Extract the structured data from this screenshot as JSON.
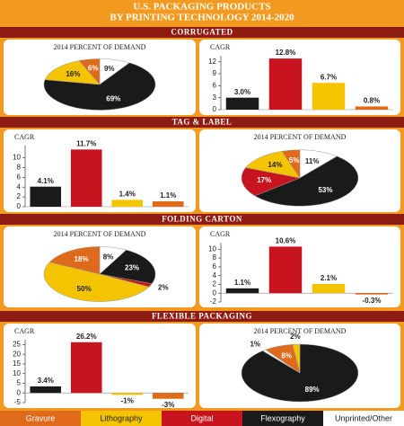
{
  "title_lines": [
    "U.S. PACKAGING PRODUCTS",
    "BY PRINTING TECHNOLOGY 2014-2020"
  ],
  "sections": [
    "CORRUGATED",
    "TAG & LABEL",
    "FOLDING CARTON",
    "FLEXIBLE PACKAGING"
  ],
  "legend": [
    {
      "name": "Gravure",
      "color": "#e06a1b"
    },
    {
      "name": "Lithography",
      "color": "#f5c400"
    },
    {
      "name": "Digital",
      "color": "#c8141e"
    },
    {
      "name": "Flexography",
      "color": "#1a1a1a"
    },
    {
      "name": "Unprinted/Other",
      "color": "#ffffff"
    }
  ],
  "chart_data": [
    {
      "type": "pie",
      "title": "2014 PERCENT OF DEMAND",
      "categories": [
        "Unprinted/Other",
        "Flexography",
        "Lithography",
        "Gravure"
      ],
      "values": [
        9,
        69,
        16,
        6
      ],
      "value_labels": [
        "9%",
        "69%",
        "16%",
        "6%"
      ],
      "colors": [
        "#ffffff",
        "#1a1a1a",
        "#f5c400",
        "#e06a1b"
      ]
    },
    {
      "type": "bar",
      "title": "CAGR",
      "categories": [
        "Flexography",
        "Digital",
        "Lithography",
        "Gravure"
      ],
      "values": [
        3.0,
        12.8,
        6.7,
        0.8
      ],
      "value_labels": [
        "3.0%",
        "12.8%",
        "6.7%",
        "0.8%"
      ],
      "colors": [
        "#1a1a1a",
        "#c8141e",
        "#f5c400",
        "#e06a1b"
      ],
      "ylim": [
        0,
        13.5
      ],
      "yticks": [
        0,
        3,
        6,
        9,
        12
      ]
    },
    {
      "type": "bar",
      "title": "CAGR",
      "categories": [
        "Flexography",
        "Digital",
        "Lithography",
        "Gravure"
      ],
      "values": [
        4.1,
        11.7,
        1.4,
        1.1
      ],
      "value_labels": [
        "4.1%",
        "11.7%",
        "1.4%",
        "1.1%"
      ],
      "colors": [
        "#1a1a1a",
        "#c8141e",
        "#f5c400",
        "#e06a1b"
      ],
      "ylim": [
        0,
        12.5
      ],
      "yticks": [
        0,
        2,
        4,
        6,
        8,
        10
      ]
    },
    {
      "type": "pie",
      "title": "2014 PERCENT OF DEMAND",
      "categories": [
        "Unprinted/Other",
        "Flexography",
        "Digital",
        "Lithography",
        "Gravure"
      ],
      "values": [
        11,
        53,
        17,
        14,
        5
      ],
      "value_labels": [
        "11%",
        "53%",
        "17%",
        "14%",
        "5%"
      ],
      "colors": [
        "#ffffff",
        "#1a1a1a",
        "#c8141e",
        "#f5c400",
        "#e06a1b"
      ]
    },
    {
      "type": "pie",
      "title": "2014 PERCENT OF DEMAND",
      "categories": [
        "Unprinted/Other",
        "Flexography",
        "Digital",
        "Lithography",
        "Gravure"
      ],
      "values": [
        8,
        23,
        2,
        50,
        18
      ],
      "value_labels": [
        "8%",
        "23%",
        "2%",
        "50%",
        "18%"
      ],
      "colors": [
        "#ffffff",
        "#1a1a1a",
        "#c8141e",
        "#f5c400",
        "#e06a1b"
      ]
    },
    {
      "type": "bar",
      "title": "CAGR",
      "categories": [
        "Flexography",
        "Digital",
        "Lithography",
        "Gravure"
      ],
      "values": [
        1.1,
        10.6,
        2.1,
        -0.3
      ],
      "value_labels": [
        "1.1%",
        "10.6%",
        "2.1%",
        "-0.3%"
      ],
      "colors": [
        "#1a1a1a",
        "#c8141e",
        "#f5c400",
        "#e06a1b"
      ],
      "ylim": [
        -2,
        11.5
      ],
      "yticks": [
        -2,
        0,
        2,
        4,
        6,
        8,
        10
      ]
    },
    {
      "type": "bar",
      "title": "CAGR",
      "categories": [
        "Flexography",
        "Digital",
        "Lithography",
        "Gravure"
      ],
      "values": [
        3.4,
        26.2,
        -1,
        -3
      ],
      "value_labels": [
        "3.4%",
        "26.2%",
        "-1%",
        "-3%"
      ],
      "colors": [
        "#1a1a1a",
        "#c8141e",
        "#f5c400",
        "#e06a1b"
      ],
      "ylim": [
        -5,
        27.5
      ],
      "yticks": [
        -5,
        0,
        5,
        10,
        15,
        20,
        25
      ]
    },
    {
      "type": "pie",
      "title": "2014 PERCENT OF DEMAND",
      "categories": [
        "Flexography",
        "Unprinted/Other",
        "Gravure",
        "Lithography"
      ],
      "values": [
        89,
        1,
        8,
        2
      ],
      "value_labels": [
        "89%",
        "1%",
        "8%",
        "2%"
      ],
      "colors": [
        "#1a1a1a",
        "#ffffff",
        "#e06a1b",
        "#f5c400"
      ]
    }
  ]
}
